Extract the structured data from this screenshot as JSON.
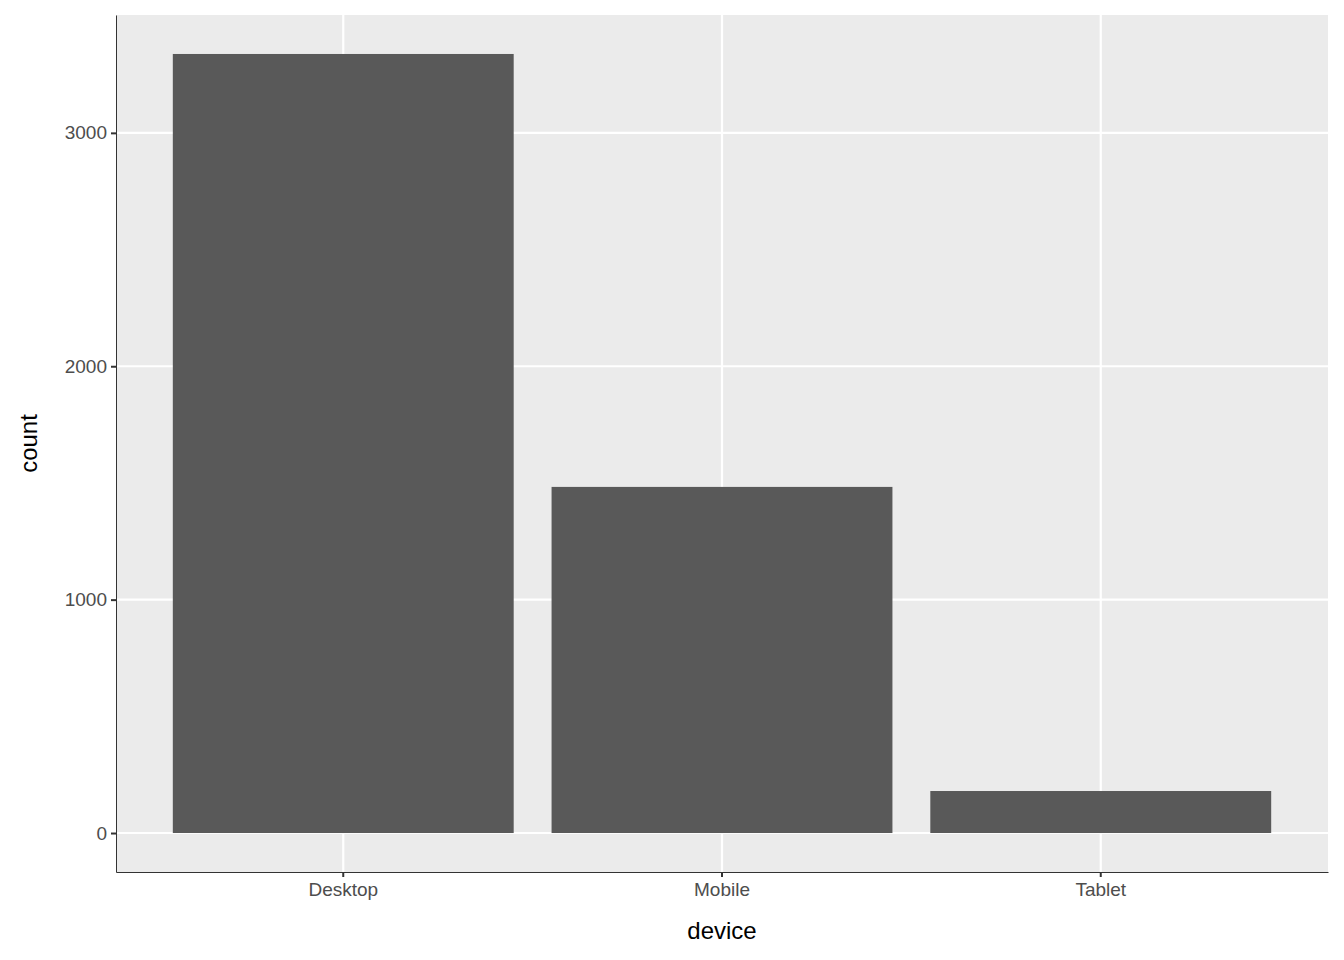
{
  "chart_data": {
    "type": "bar",
    "x_label": "device",
    "y_label": "count",
    "categories": [
      "Desktop",
      "Mobile",
      "Tablet"
    ],
    "values": [
      3338,
      1483,
      180
    ],
    "color": "#595959",
    "ylim": [
      -167,
      3505
    ],
    "yticks": [
      0,
      1000,
      2000,
      3000
    ],
    "grid": true
  }
}
